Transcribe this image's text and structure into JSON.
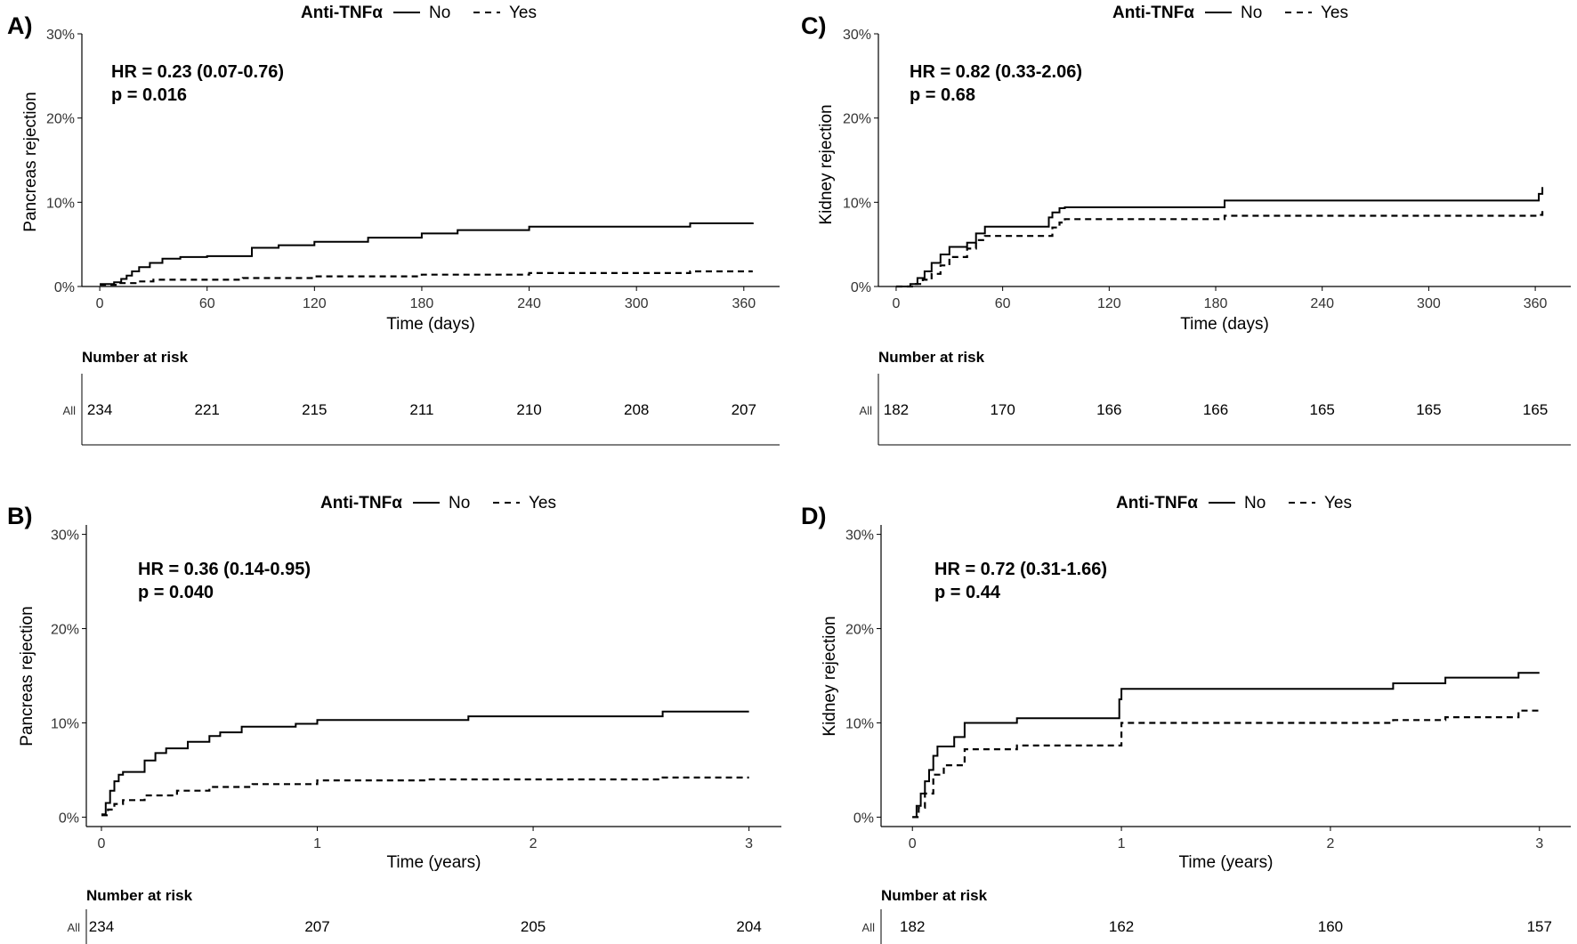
{
  "legend": {
    "title": "Anti-TNFα",
    "items": [
      {
        "name": "No",
        "dash": "solid"
      },
      {
        "name": "Yes",
        "dash": "dashed"
      }
    ]
  },
  "risk_title": "Number at risk",
  "risk_row_label": "All",
  "chart_data": [
    {
      "panel": "A)",
      "type": "line",
      "subtype": "cumulative-incidence",
      "ylabel": "Pancreas  rejection",
      "xlabel": "Time (days)",
      "xlim": [
        -10,
        380
      ],
      "ylim": [
        0,
        30
      ],
      "x_ticks": [
        0,
        60,
        120,
        180,
        240,
        300,
        360
      ],
      "y_ticks": [
        0,
        10,
        20,
        30
      ],
      "y_tick_labels": [
        "0%",
        "10%",
        "20%",
        "30%"
      ],
      "annotation": {
        "hr": "HR = 0.23 (0.07-0.76)",
        "p": "p = 0.016"
      },
      "series": [
        {
          "name": "No",
          "x": [
            0,
            8,
            12,
            15,
            18,
            22,
            28,
            35,
            45,
            60,
            85,
            100,
            120,
            150,
            180,
            200,
            240,
            330,
            365
          ],
          "y": [
            0.3,
            0.5,
            0.9,
            1.3,
            1.8,
            2.3,
            2.8,
            3.3,
            3.5,
            3.6,
            4.6,
            4.9,
            5.3,
            5.8,
            6.3,
            6.7,
            7.1,
            7.5,
            7.6
          ]
        },
        {
          "name": "Yes",
          "x": [
            0,
            10,
            20,
            30,
            80,
            120,
            180,
            240,
            330,
            365
          ],
          "y": [
            0.2,
            0.4,
            0.6,
            0.8,
            1.0,
            1.2,
            1.4,
            1.6,
            1.8,
            1.8
          ]
        }
      ],
      "risk": {
        "times": [
          0,
          60,
          120,
          180,
          240,
          300,
          360
        ],
        "counts": [
          "234",
          "221",
          "215",
          "211",
          "210",
          "208",
          "207"
        ]
      }
    },
    {
      "panel": "B)",
      "type": "line",
      "subtype": "cumulative-incidence",
      "ylabel": "Pancreas rejection",
      "xlabel": "Time (years)",
      "xlim": [
        -0.07,
        3.15
      ],
      "ylim": [
        -1,
        31
      ],
      "x_ticks": [
        0,
        1,
        2,
        3
      ],
      "y_ticks": [
        0,
        10,
        20,
        30
      ],
      "y_tick_labels": [
        "0%",
        "10%",
        "20%",
        "30%"
      ],
      "annotation": {
        "hr": "HR = 0.36 (0.14-0.95)",
        "p": "p = 0.040"
      },
      "series": [
        {
          "name": "No",
          "x": [
            0,
            0.02,
            0.04,
            0.06,
            0.08,
            0.1,
            0.2,
            0.25,
            0.3,
            0.4,
            0.5,
            0.55,
            0.65,
            0.9,
            1.0,
            1.7,
            2.6,
            3.0
          ],
          "y": [
            0.3,
            1.5,
            2.8,
            3.8,
            4.5,
            4.8,
            6.0,
            6.8,
            7.3,
            8.0,
            8.6,
            9.0,
            9.6,
            9.9,
            10.3,
            10.7,
            11.2,
            11.2
          ]
        },
        {
          "name": "Yes",
          "x": [
            0,
            0.03,
            0.06,
            0.1,
            0.2,
            0.35,
            0.5,
            0.7,
            1.0,
            1.5,
            2.6,
            3.0
          ],
          "y": [
            0.2,
            0.8,
            1.4,
            1.8,
            2.3,
            2.8,
            3.2,
            3.5,
            3.9,
            4.0,
            4.2,
            4.2
          ]
        }
      ],
      "risk": {
        "times": [
          0,
          1,
          2,
          3
        ],
        "counts": [
          "234",
          "207",
          "205",
          "204"
        ]
      }
    },
    {
      "panel": "C)",
      "type": "line",
      "subtype": "cumulative-incidence",
      "ylabel": "Kidney rejection",
      "xlabel": "Time (days)",
      "xlim": [
        -10,
        380
      ],
      "ylim": [
        0,
        30
      ],
      "x_ticks": [
        0,
        60,
        120,
        180,
        240,
        300,
        360
      ],
      "y_ticks": [
        0,
        10,
        20,
        30
      ],
      "y_tick_labels": [
        "0%",
        "10%",
        "20%",
        "30%"
      ],
      "annotation": {
        "hr": "HR = 0.82 (0.33-2.06)",
        "p": "p = 0.68"
      },
      "series": [
        {
          "name": "No",
          "x": [
            0,
            8,
            12,
            16,
            20,
            25,
            30,
            40,
            45,
            50,
            86,
            88,
            92,
            95,
            185,
            360,
            362,
            364
          ],
          "y": [
            0,
            0.3,
            1.0,
            1.8,
            2.8,
            3.8,
            4.7,
            5.2,
            6.3,
            7.1,
            8.2,
            8.8,
            9.3,
            9.4,
            10.2,
            10.2,
            11.0,
            11.8
          ]
        },
        {
          "name": "Yes",
          "x": [
            0,
            10,
            15,
            20,
            25,
            30,
            40,
            45,
            50,
            88,
            92,
            95,
            185,
            362,
            364
          ],
          "y": [
            0,
            0.3,
            0.8,
            1.5,
            2.5,
            3.5,
            4.5,
            5.5,
            6.0,
            7.0,
            7.6,
            8.0,
            8.4,
            8.5,
            9.2
          ]
        }
      ],
      "risk": {
        "times": [
          0,
          60,
          120,
          180,
          240,
          300,
          360
        ],
        "counts": [
          "182",
          "170",
          "166",
          "166",
          "165",
          "165",
          "165"
        ]
      }
    },
    {
      "panel": "D)",
      "type": "line",
      "subtype": "cumulative-incidence",
      "ylabel": "Kidney rejection",
      "xlabel": "Time (years)",
      "xlim": [
        -0.15,
        3.15
      ],
      "ylim": [
        -1,
        31
      ],
      "x_ticks": [
        0,
        1,
        2,
        3
      ],
      "y_ticks": [
        0,
        10,
        20,
        30
      ],
      "y_tick_labels": [
        "0%",
        "10%",
        "20%",
        "30%"
      ],
      "annotation": {
        "hr": "HR = 0.72 (0.31-1.66)",
        "p": "p = 0.44"
      },
      "series": [
        {
          "name": "No",
          "x": [
            0,
            0.02,
            0.04,
            0.06,
            0.08,
            0.1,
            0.12,
            0.2,
            0.25,
            0.5,
            0.99,
            1.0,
            2.3,
            2.55,
            2.9,
            3.0
          ],
          "y": [
            0,
            1.2,
            2.5,
            3.8,
            5.0,
            6.5,
            7.5,
            8.5,
            10.0,
            10.5,
            12.5,
            13.6,
            14.2,
            14.8,
            15.3,
            15.3
          ]
        },
        {
          "name": "Yes",
          "x": [
            0,
            0.03,
            0.06,
            0.1,
            0.15,
            0.25,
            0.5,
            1.0,
            2.3,
            2.55,
            2.9,
            3.0
          ],
          "y": [
            0,
            1.0,
            2.5,
            4.5,
            5.5,
            7.2,
            7.6,
            10.0,
            10.3,
            10.6,
            11.3,
            11.3
          ]
        }
      ],
      "risk": {
        "times": [
          0,
          1,
          2,
          3
        ],
        "counts": [
          "182",
          "162",
          "160",
          "157"
        ]
      }
    }
  ]
}
